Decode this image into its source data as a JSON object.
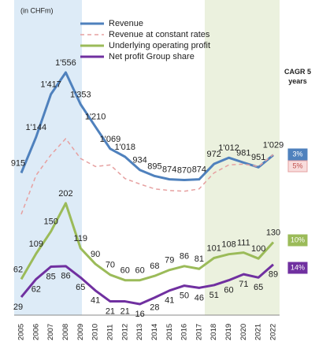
{
  "chart_data": {
    "type": "line",
    "subtitle": "(in CHFm)",
    "categories": [
      "2005",
      "2006",
      "2007",
      "2008",
      "2009",
      "2010",
      "2011",
      "2012",
      "2013",
      "2014",
      "2015",
      "2016",
      "2017",
      "2018",
      "2019",
      "2020",
      "2021",
      "2022"
    ],
    "legend": "top",
    "cagr_title": "CAGR 5 years",
    "series": [
      {
        "name": "Revenue",
        "color": "#4f81bd",
        "dash": false,
        "group": "revenue",
        "values": [
          915,
          1144,
          1417,
          1556,
          1353,
          1210,
          1069,
          1018,
          934,
          895,
          874,
          870,
          874,
          972,
          1012,
          981,
          951,
          1029
        ],
        "value_labels": [
          "915",
          "1'144",
          "1'417",
          "1'556",
          "1'353",
          "1'210",
          "1'069",
          "1'018",
          "934",
          "895",
          "874",
          "870",
          "874",
          "972",
          "1'012",
          "981",
          "951",
          "1'029"
        ],
        "cagr": "3%"
      },
      {
        "name": "Revenue at constant rates",
        "color": "#e6a0a0",
        "dash": true,
        "group": "revenue",
        "values": [
          651,
          900,
          1030,
          1134,
          1007,
          956,
          966,
          879,
          844,
          813,
          803,
          798,
          813,
          915,
          966,
          971,
          956,
          1032
        ],
        "cagr": "5%"
      },
      {
        "name": "Underlying operating profit",
        "color": "#9bbb59",
        "dash": false,
        "group": "profit",
        "values": [
          62,
          109,
          150,
          202,
          119,
          90,
          70,
          60,
          60,
          68,
          79,
          86,
          81,
          101,
          108,
          111,
          100,
          130
        ],
        "cagr": "10%"
      },
      {
        "name": "Net profit Group share",
        "color": "#7030a0",
        "dash": false,
        "group": "profit",
        "values": [
          29,
          62,
          85,
          86,
          65,
          41,
          21,
          21,
          16,
          28,
          41,
          50,
          46,
          51,
          60,
          71,
          65,
          89
        ],
        "cagr": "14%"
      }
    ]
  }
}
